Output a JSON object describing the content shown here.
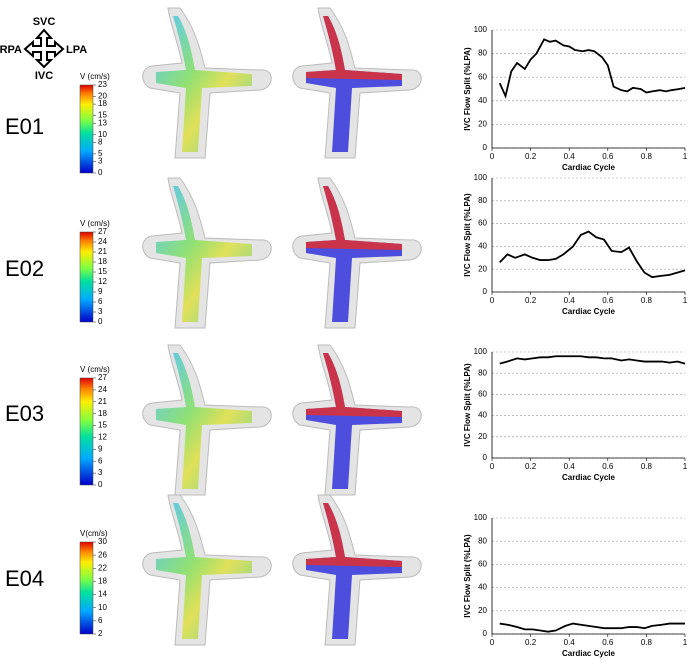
{
  "orientation": {
    "top": "SVC",
    "bottom": "IVC",
    "left": "RPA",
    "right": "LPA"
  },
  "rows": [
    {
      "label": "E01",
      "colorbar": {
        "title": "V (cm/s)",
        "ticks": [
          23,
          20,
          18,
          15,
          13,
          10,
          8,
          5,
          3,
          0
        ]
      }
    },
    {
      "label": "E02",
      "colorbar": {
        "title": "V (cm/s)",
        "ticks": [
          27,
          24,
          21,
          18,
          15,
          12,
          9,
          6,
          3,
          0
        ]
      }
    },
    {
      "label": "E03",
      "colorbar": {
        "title": "V (cm/s)",
        "ticks": [
          27,
          24,
          21,
          18,
          15,
          12,
          9,
          6,
          3,
          0
        ]
      }
    },
    {
      "label": "E04",
      "colorbar": {
        "title": "V(cm/s)",
        "ticks": [
          30,
          26,
          22,
          18,
          14,
          10,
          6,
          2
        ]
      }
    }
  ],
  "chart_data": [
    {
      "type": "line",
      "x_label": "Cardiac Cycle",
      "y_label": "IVC Flow Split (%LPA)",
      "color": "#000000",
      "grid": true,
      "xlim": [
        0,
        1
      ],
      "xticks": [
        0,
        0.2,
        0.4,
        0.6,
        0.8,
        1
      ],
      "ylim": [
        0,
        100
      ],
      "yticks": [
        0,
        20,
        40,
        60,
        80,
        100
      ],
      "x": [
        0.04,
        0.07,
        0.1,
        0.13,
        0.17,
        0.2,
        0.23,
        0.27,
        0.3,
        0.33,
        0.37,
        0.4,
        0.43,
        0.47,
        0.5,
        0.53,
        0.57,
        0.6,
        0.63,
        0.67,
        0.7,
        0.73,
        0.77,
        0.8,
        0.83,
        0.87,
        0.9,
        0.93,
        0.97,
        1.0
      ],
      "values": [
        55,
        44,
        65,
        72,
        67,
        75,
        80,
        92,
        90,
        91,
        87,
        86,
        83,
        82,
        83,
        82,
        77,
        70,
        52,
        49,
        48,
        51,
        50,
        47,
        48,
        49,
        48,
        49,
        50,
        51
      ]
    },
    {
      "type": "line",
      "x_label": "Cardiac Cycle",
      "y_label": "IVC Flow Split (%LPA)",
      "color": "#000000",
      "grid": true,
      "xlim": [
        0,
        1
      ],
      "xticks": [
        0,
        0.2,
        0.4,
        0.6,
        0.8,
        1
      ],
      "ylim": [
        0,
        100
      ],
      "yticks": [
        0,
        20,
        40,
        60,
        80,
        100
      ],
      "x": [
        0.04,
        0.08,
        0.12,
        0.17,
        0.21,
        0.25,
        0.29,
        0.33,
        0.37,
        0.42,
        0.46,
        0.5,
        0.54,
        0.58,
        0.62,
        0.67,
        0.71,
        0.75,
        0.79,
        0.83,
        0.87,
        0.92,
        1.0
      ],
      "values": [
        26,
        33,
        30,
        33,
        30,
        28,
        28,
        29,
        33,
        40,
        50,
        53,
        48,
        46,
        36,
        35,
        39,
        27,
        17,
        13,
        14,
        15,
        19
      ]
    },
    {
      "type": "line",
      "x_label": "Cardiac Cycle",
      "y_label": "IVC Flow Split (%LPA)",
      "color": "#000000",
      "grid": true,
      "xlim": [
        0,
        1
      ],
      "xticks": [
        0,
        0.2,
        0.4,
        0.6,
        0.8,
        1
      ],
      "ylim": [
        0,
        100
      ],
      "yticks": [
        0,
        20,
        40,
        60,
        80,
        100
      ],
      "x": [
        0.04,
        0.08,
        0.13,
        0.17,
        0.21,
        0.25,
        0.29,
        0.33,
        0.38,
        0.42,
        0.46,
        0.5,
        0.54,
        0.58,
        0.62,
        0.67,
        0.71,
        0.75,
        0.79,
        0.83,
        0.88,
        0.92,
        0.96,
        1.0
      ],
      "values": [
        89,
        91,
        94,
        93,
        94,
        95,
        95,
        96,
        96,
        96,
        96,
        95,
        95,
        94,
        94,
        92,
        93,
        92,
        91,
        91,
        91,
        90,
        91,
        89
      ]
    },
    {
      "type": "line",
      "x_label": "Cardiac Cycle",
      "y_label": "IVC Flow Split (%LPA)",
      "color": "#000000",
      "grid": true,
      "xlim": [
        0,
        1
      ],
      "xticks": [
        0,
        0.2,
        0.4,
        0.6,
        0.8,
        1
      ],
      "ylim": [
        0,
        100
      ],
      "yticks": [
        0,
        20,
        40,
        60,
        80,
        100
      ],
      "x": [
        0.04,
        0.08,
        0.13,
        0.17,
        0.21,
        0.25,
        0.29,
        0.33,
        0.38,
        0.42,
        0.46,
        0.5,
        0.54,
        0.58,
        0.62,
        0.67,
        0.71,
        0.75,
        0.79,
        0.83,
        0.88,
        0.92,
        0.96,
        1.0
      ],
      "values": [
        9,
        8,
        6,
        4,
        4,
        3,
        2,
        3,
        7,
        9,
        8,
        7,
        6,
        5,
        5,
        5,
        6,
        6,
        5,
        7,
        8,
        9,
        9,
        9
      ]
    }
  ]
}
